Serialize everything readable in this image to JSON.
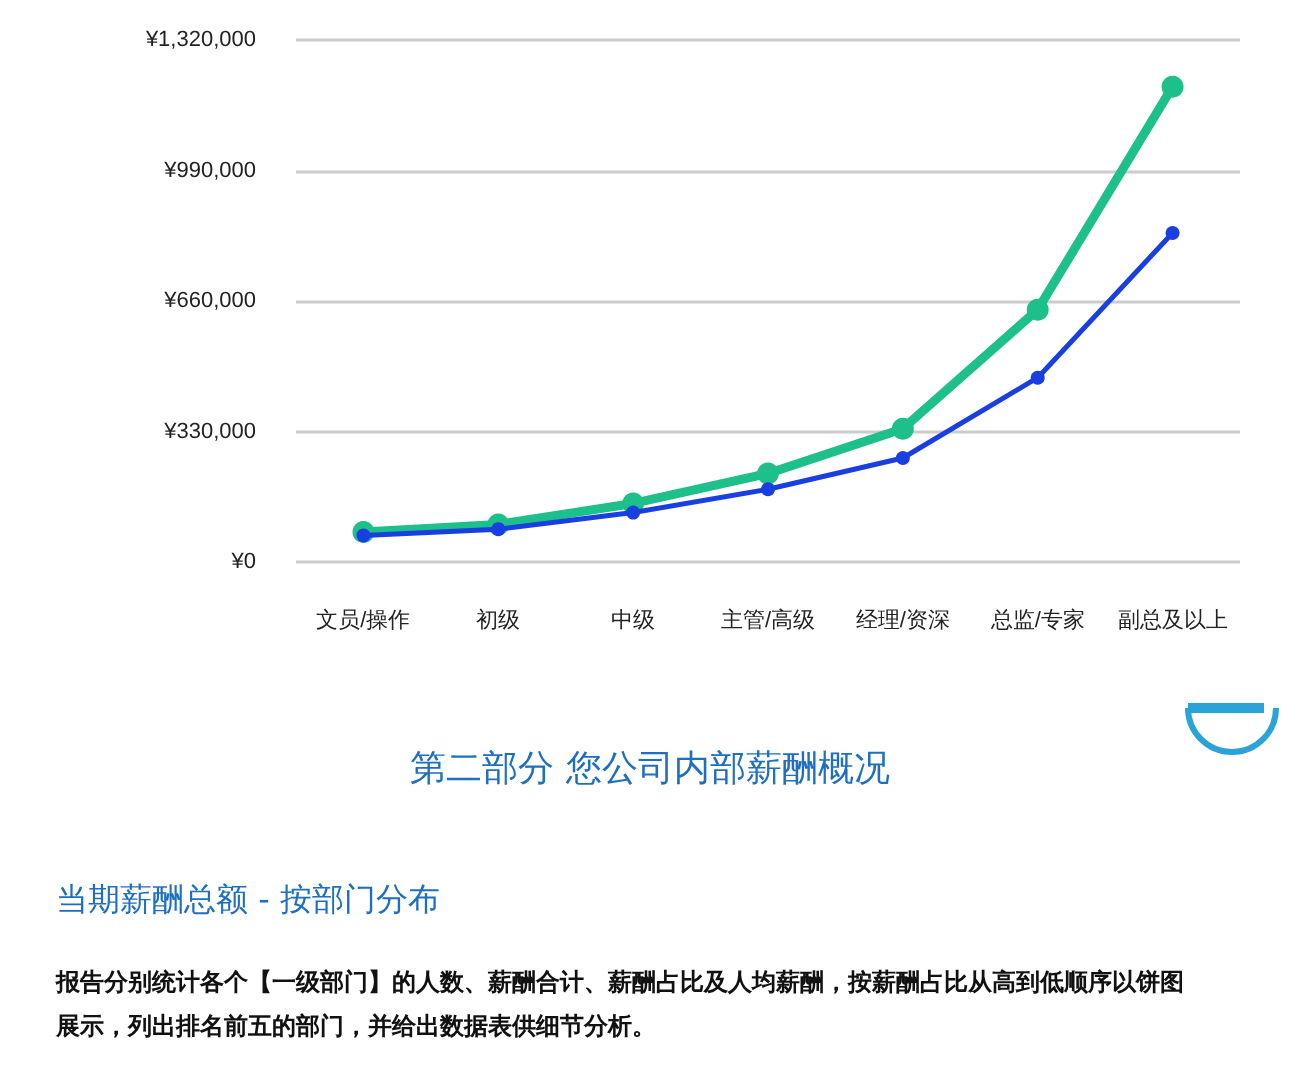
{
  "chart_data": {
    "type": "line",
    "categories": [
      "文员/操作",
      "初级",
      "中级",
      "主管/高级",
      "经理/资深",
      "总监/专家",
      "副总及以上"
    ],
    "series": [
      {
        "color": "#1dbf8a",
        "values": [
          76000,
          95000,
          148000,
          224000,
          337000,
          638000,
          1202000
        ]
      },
      {
        "color": "#1a3fe0",
        "values": [
          67000,
          83000,
          125000,
          184000,
          263000,
          466000,
          832000
        ]
      }
    ],
    "ylim": [
      0,
      1320000
    ],
    "yticks": [
      {
        "value": 0,
        "label": "¥0"
      },
      {
        "value": 330000,
        "label": "¥330,000"
      },
      {
        "value": 660000,
        "label": "¥660,000"
      },
      {
        "value": 990000,
        "label": "¥990,000"
      },
      {
        "value": 1320000,
        "label": "¥1,320,000"
      }
    ],
    "grid": "y",
    "marker": "circle",
    "line_style": "solid",
    "annotations": [
      "第二部分 您公司内部薪酬概况",
      "当期薪酬总额 - 按部门分布",
      "报告分别统计各个【一级部门】的人数、薪酬合计、薪酬占比及人均薪酬，按薪酬占比从高到低顺序以饼图展示，列出排名前五的部门，并给出数据表供细节分析。"
    ]
  }
}
